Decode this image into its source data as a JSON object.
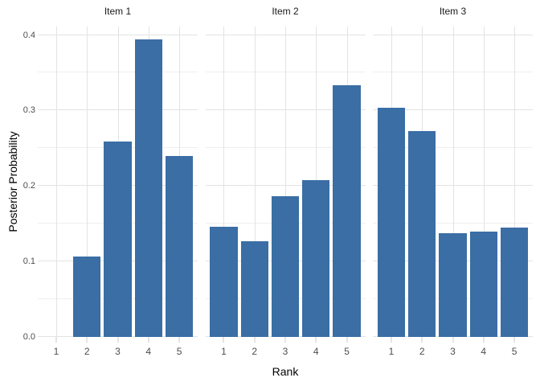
{
  "chart_data": {
    "type": "bar",
    "title": "",
    "xlabel": "Rank",
    "ylabel": "Posterior Probability",
    "categories": [
      "1",
      "2",
      "3",
      "4",
      "5"
    ],
    "facets": [
      {
        "label": "Item 1",
        "values": [
          0.0,
          0.107,
          0.259,
          0.394,
          0.24
        ]
      },
      {
        "label": "Item 2",
        "values": [
          0.146,
          0.127,
          0.186,
          0.208,
          0.333
        ]
      },
      {
        "label": "Item 3",
        "values": [
          0.304,
          0.273,
          0.137,
          0.14,
          0.145
        ]
      }
    ],
    "y_ticks": [
      0.0,
      0.1,
      0.2,
      0.3,
      0.4
    ],
    "y_tick_labels": [
      "0.0",
      "0.1",
      "0.2",
      "0.3",
      "0.4"
    ],
    "y_minor_ticks": [
      0.05,
      0.15,
      0.25,
      0.35
    ],
    "ylim": [
      0,
      0.411
    ],
    "grid": "horizontal major+minor, vertical major per rank",
    "legend": "none",
    "colors": {
      "bar": "#3A6EA5",
      "grid_major": "#E3E3E3",
      "grid_minor": "#EFEFEF",
      "axis_tick": "#C9C9C9",
      "axis_text": "#4D4D4D",
      "axis_title": "#000000",
      "background": "#FFFFFF"
    }
  }
}
